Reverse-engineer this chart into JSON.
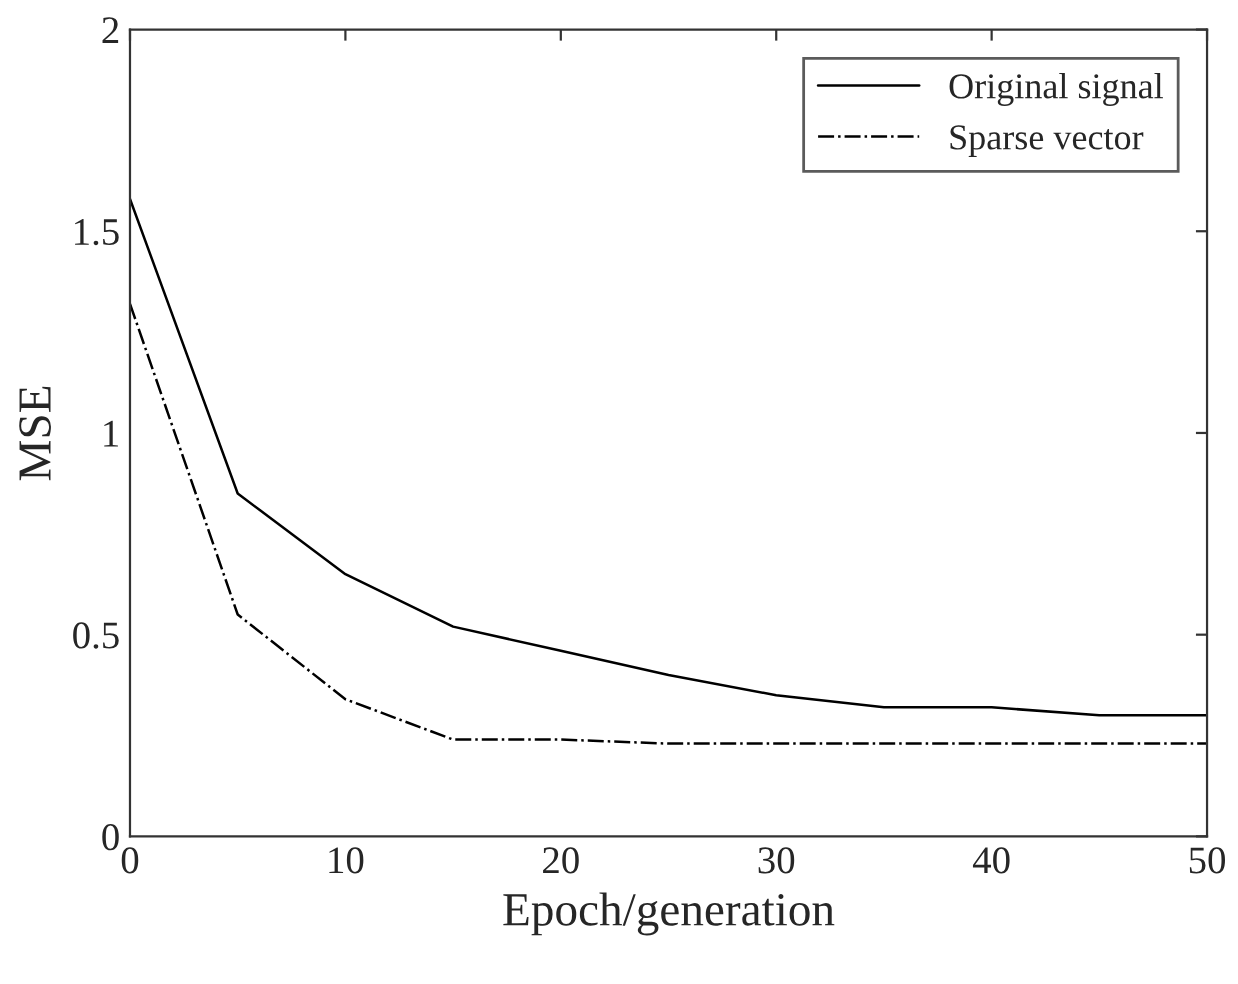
{
  "chart_data": {
    "type": "line",
    "xlabel": "Epoch/generation",
    "ylabel": "MSE",
    "x": [
      0,
      5,
      10,
      15,
      20,
      25,
      30,
      35,
      40,
      45,
      50
    ],
    "series": [
      {
        "name": "Original signal",
        "color": "#000000",
        "line_style": "solid",
        "values": [
          1.58,
          0.85,
          0.65,
          0.52,
          0.46,
          0.4,
          0.35,
          0.32,
          0.32,
          0.3,
          0.3
        ]
      },
      {
        "name": "Sparse vector",
        "color": "#000000",
        "line_style": "dashdot",
        "values": [
          1.32,
          0.55,
          0.34,
          0.24,
          0.24,
          0.23,
          0.23,
          0.23,
          0.23,
          0.23,
          0.23
        ]
      }
    ],
    "xlim": [
      0,
      50
    ],
    "ylim": [
      0,
      2
    ],
    "xticks": [
      0,
      10,
      20,
      30,
      40,
      50
    ],
    "yticks": [
      0,
      0.5,
      1,
      1.5,
      2
    ],
    "grid": false,
    "legend": "top right",
    "marker": "none"
  }
}
